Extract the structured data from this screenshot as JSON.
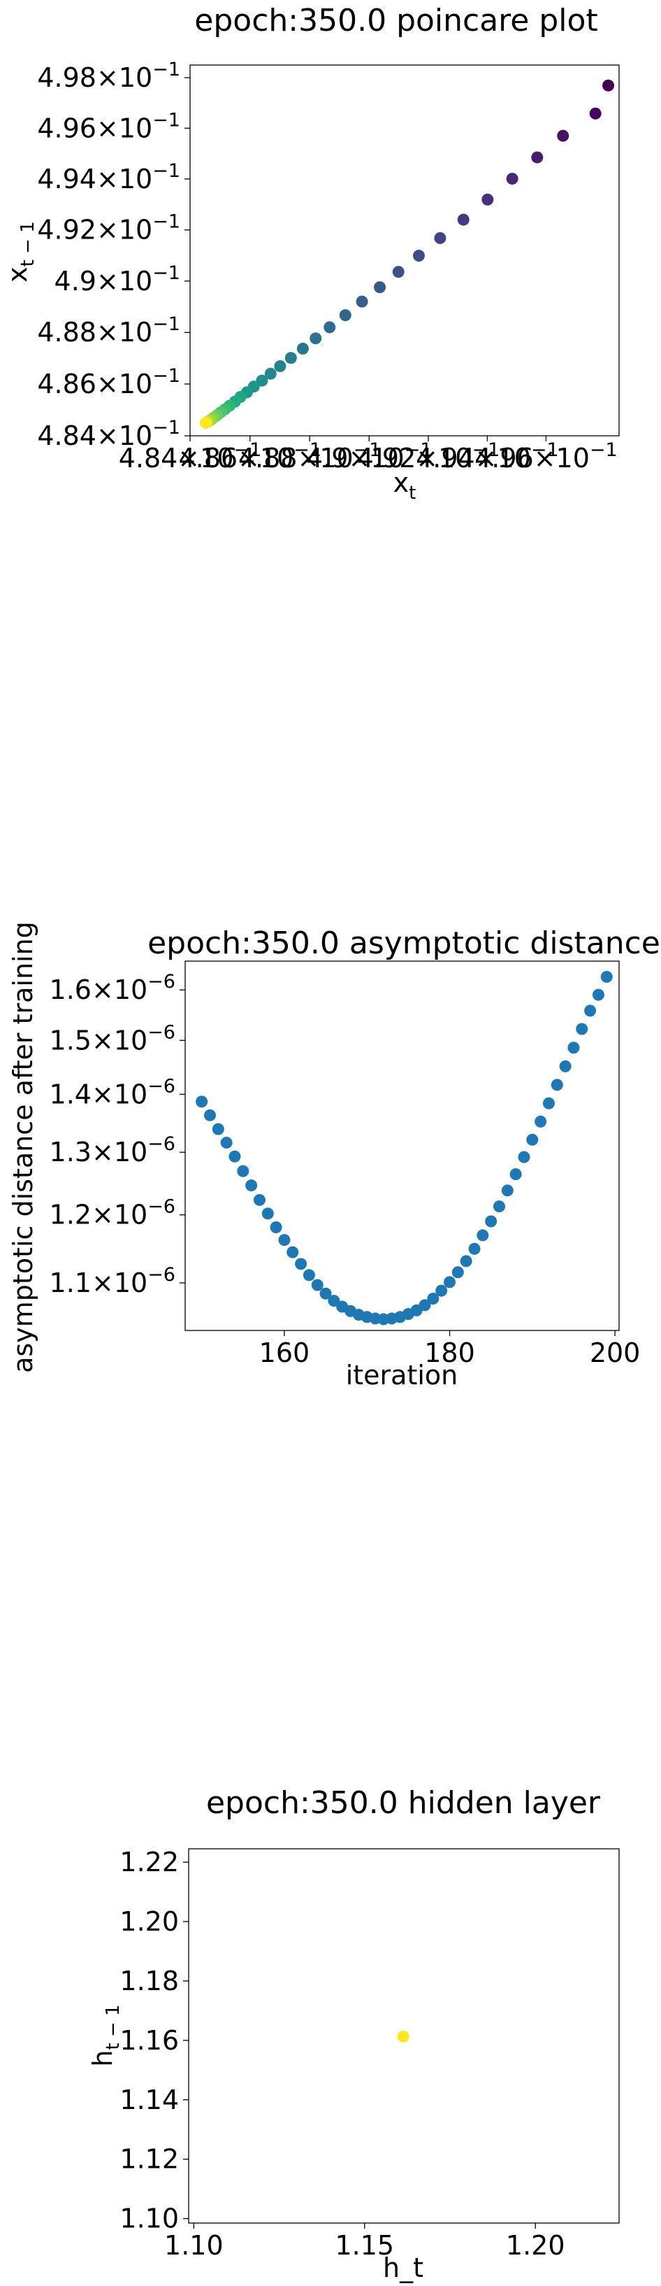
{
  "chart_data": [
    {
      "type": "scatter",
      "title": "epoch:350.0 poincare plot",
      "xlabel": "x_t",
      "ylabel": "x_{t-1}",
      "xscale": "log",
      "yscale": "log",
      "xlim": [
        0.484,
        0.4985
      ],
      "ylim": [
        0.484,
        0.4985
      ],
      "colormap": "viridis (dark purple for early points, yellow for later points)",
      "yticks": [
        {
          "value": 0.484,
          "mantissa": "4.84"
        },
        {
          "value": 0.486,
          "mantissa": "4.86"
        },
        {
          "value": 0.488,
          "mantissa": "4.88"
        },
        {
          "value": 0.49,
          "mantissa": "4.9"
        },
        {
          "value": 0.492,
          "mantissa": "4.92"
        },
        {
          "value": 0.494,
          "mantissa": "4.94"
        },
        {
          "value": 0.496,
          "mantissa": "4.96"
        },
        {
          "value": 0.498,
          "mantissa": "4.98"
        }
      ],
      "xticks": [
        {
          "value": 0.484,
          "mantissa": "4.84"
        },
        {
          "value": 0.486,
          "mantissa": "4.86"
        },
        {
          "value": 0.488,
          "mantissa": "4.88"
        },
        {
          "value": 0.49,
          "mantissa": "4.9"
        },
        {
          "value": 0.492,
          "mantissa": "4.92"
        },
        {
          "value": 0.494,
          "mantissa": "4.94"
        },
        {
          "value": 0.496,
          "mantissa": "4.96"
        }
      ],
      "points": [
        {
          "x": 0.49813,
          "y": 0.49769,
          "c": "#440154"
        },
        {
          "x": 0.49769,
          "y": 0.49658,
          "c": "#46065b"
        },
        {
          "x": 0.49658,
          "y": 0.4957,
          "c": "#471365"
        },
        {
          "x": 0.4957,
          "y": 0.49485,
          "c": "#481d6f"
        },
        {
          "x": 0.49485,
          "y": 0.49401,
          "c": "#472777"
        },
        {
          "x": 0.49401,
          "y": 0.49319,
          "c": "#46307e"
        },
        {
          "x": 0.49319,
          "y": 0.4924,
          "c": "#443a83"
        },
        {
          "x": 0.4924,
          "y": 0.49168,
          "c": "#414487"
        },
        {
          "x": 0.49168,
          "y": 0.49099,
          "c": "#3e4c8a"
        },
        {
          "x": 0.49099,
          "y": 0.49036,
          "c": "#3b528b"
        },
        {
          "x": 0.49036,
          "y": 0.48976,
          "c": "#38598c"
        },
        {
          "x": 0.48976,
          "y": 0.4892,
          "c": "#355f8d"
        },
        {
          "x": 0.4892,
          "y": 0.48867,
          "c": "#32658e"
        },
        {
          "x": 0.48867,
          "y": 0.4882,
          "c": "#2f6b8e"
        },
        {
          "x": 0.4882,
          "y": 0.48777,
          "c": "#2c718e"
        },
        {
          "x": 0.48777,
          "y": 0.48737,
          "c": "#2a768e"
        },
        {
          "x": 0.48737,
          "y": 0.48701,
          "c": "#277c8e"
        },
        {
          "x": 0.48701,
          "y": 0.48669,
          "c": "#25828e"
        },
        {
          "x": 0.48669,
          "y": 0.4864,
          "c": "#23888e"
        },
        {
          "x": 0.4864,
          "y": 0.48613,
          "c": "#218e8d"
        },
        {
          "x": 0.48613,
          "y": 0.4859,
          "c": "#1f948c"
        },
        {
          "x": 0.4859,
          "y": 0.48568,
          "c": "#1e9a8a"
        },
        {
          "x": 0.48568,
          "y": 0.4855,
          "c": "#20a386"
        },
        {
          "x": 0.4855,
          "y": 0.48532,
          "c": "#24aa83"
        },
        {
          "x": 0.48532,
          "y": 0.48516,
          "c": "#2fb47c"
        },
        {
          "x": 0.48516,
          "y": 0.48502,
          "c": "#3dbc74"
        },
        {
          "x": 0.48502,
          "y": 0.4849,
          "c": "#4ec36b"
        },
        {
          "x": 0.4849,
          "y": 0.48479,
          "c": "#63cb5f"
        },
        {
          "x": 0.48479,
          "y": 0.4847,
          "c": "#7ad151"
        },
        {
          "x": 0.4847,
          "y": 0.48462,
          "c": "#95d840"
        },
        {
          "x": 0.48462,
          "y": 0.48456,
          "c": "#b0dd2f"
        },
        {
          "x": 0.48456,
          "y": 0.48452,
          "c": "#d2e21b"
        },
        {
          "x": 0.48452,
          "y": 0.4845,
          "c": "#fde725"
        }
      ]
    },
    {
      "type": "scatter",
      "title": "epoch:350.0 asymptotic distance",
      "xlabel": "iteration",
      "ylabel": "asymptotic distance after training",
      "yscale": "log",
      "xlim": [
        148,
        200.5
      ],
      "ylim": [
        1.035e-06,
        1.66e-06
      ],
      "color": "#1f77b4",
      "xticks": [
        {
          "value": 160,
          "label": "160"
        },
        {
          "value": 180,
          "label": "180"
        },
        {
          "value": 200,
          "label": "200"
        }
      ],
      "yticks": [
        {
          "value": 1.1e-06,
          "mantissa": "1.1"
        },
        {
          "value": 1.2e-06,
          "mantissa": "1.2"
        },
        {
          "value": 1.3e-06,
          "mantissa": "1.3"
        },
        {
          "value": 1.4e-06,
          "mantissa": "1.4"
        },
        {
          "value": 1.5e-06,
          "mantissa": "1.5"
        },
        {
          "value": 1.6e-06,
          "mantissa": "1.6"
        }
      ],
      "x": [
        150,
        151,
        152,
        153,
        154,
        155,
        156,
        157,
        158,
        159,
        160,
        161,
        162,
        163,
        164,
        165,
        166,
        167,
        168,
        169,
        170,
        171,
        172,
        173,
        174,
        175,
        176,
        177,
        178,
        179,
        180,
        181,
        182,
        183,
        184,
        185,
        186,
        187,
        188,
        189,
        190,
        191,
        192,
        193,
        194,
        195,
        196,
        197,
        198,
        199
      ],
      "y": [
        1.387e-06,
        1.363e-06,
        1.339e-06,
        1.316e-06,
        1.293e-06,
        1.269e-06,
        1.246e-06,
        1.223e-06,
        1.202e-06,
        1.181e-06,
        1.162e-06,
        1.144e-06,
        1.127e-06,
        1.111e-06,
        1.097e-06,
        1.085e-06,
        1.075e-06,
        1.067e-06,
        1.061e-06,
        1.056e-06,
        1.053e-06,
        1.051e-06,
        1.05e-06,
        1.051e-06,
        1.053e-06,
        1.057e-06,
        1.062e-06,
        1.069e-06,
        1.078e-06,
        1.089e-06,
        1.101e-06,
        1.115e-06,
        1.131e-06,
        1.149e-06,
        1.169e-06,
        1.19e-06,
        1.213e-06,
        1.238e-06,
        1.264e-06,
        1.292e-06,
        1.321e-06,
        1.352e-06,
        1.384e-06,
        1.417e-06,
        1.451e-06,
        1.486e-06,
        1.522e-06,
        1.558e-06,
        1.59e-06,
        1.627e-06
      ]
    },
    {
      "type": "scatter",
      "title": "epoch:350.0 hidden layer",
      "xlabel": "h_t",
      "ylabel": "h_{t-1}",
      "xlim": [
        1.0985,
        1.2245
      ],
      "ylim": [
        1.0985,
        1.2245
      ],
      "xticks": [
        {
          "value": 1.1,
          "label": "1.10"
        },
        {
          "value": 1.15,
          "label": "1.15"
        },
        {
          "value": 1.2,
          "label": "1.20"
        }
      ],
      "yticks": [
        {
          "value": 1.1,
          "label": "1.10"
        },
        {
          "value": 1.12,
          "label": "1.12"
        },
        {
          "value": 1.14,
          "label": "1.14"
        },
        {
          "value": 1.16,
          "label": "1.16"
        },
        {
          "value": 1.18,
          "label": "1.18"
        },
        {
          "value": 1.2,
          "label": "1.20"
        },
        {
          "value": 1.22,
          "label": "1.22"
        }
      ],
      "points": [
        {
          "x": 1.1613,
          "y": 1.1613,
          "c": "#fde725"
        }
      ]
    }
  ]
}
